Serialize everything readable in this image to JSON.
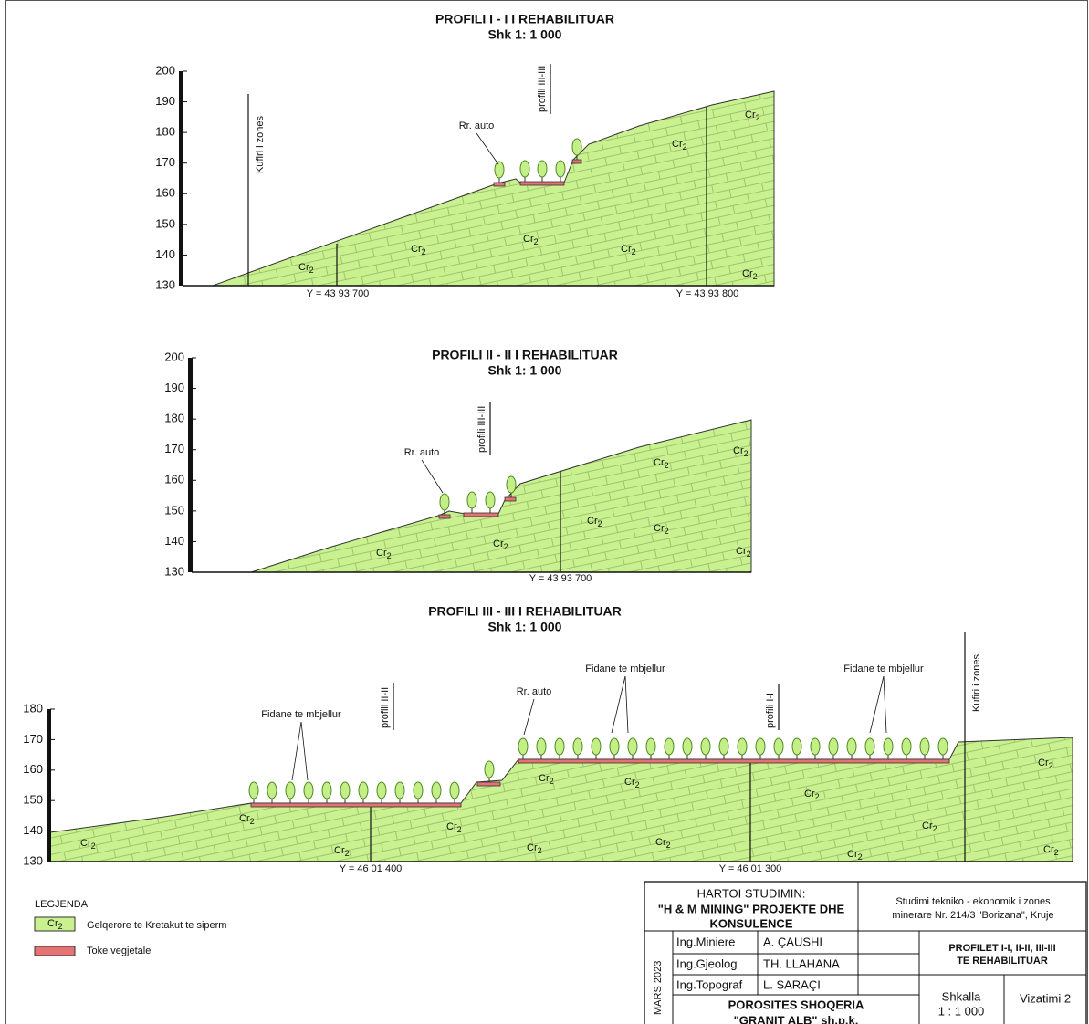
{
  "profiles": [
    {
      "title": "PROFILI I - I I REHABILITUAR",
      "scale": "Shk 1: 1 000",
      "yticks": [
        200,
        190,
        180,
        170,
        160,
        150,
        140,
        130
      ],
      "boundary": "Kufiri i zones",
      "sections": [
        "profili III-III"
      ],
      "road": "Rr. auto",
      "seedlings": [],
      "coords": [
        "Y = 43 93 700",
        "Y = 43 93 800"
      ]
    },
    {
      "title": "PROFILI II - II I REHABILITUAR",
      "scale": "Shk 1: 1 000",
      "yticks": [
        200,
        190,
        180,
        170,
        160,
        150,
        140,
        130
      ],
      "sections": [
        "profili III-III"
      ],
      "road": "Rr. auto",
      "seedlings": [],
      "coords": [
        "Y = 43 93 700"
      ]
    },
    {
      "title": "PROFILI III - III I REHABILITUAR",
      "scale": "Shk 1: 1 000",
      "yticks": [
        180,
        170,
        160,
        150,
        140,
        130
      ],
      "boundary": "Kufiri i zones",
      "sections": [
        "profili II-II",
        "profili I-I"
      ],
      "road": "Rr. auto",
      "seedlings": [
        "Fidane te mbjellur",
        "Fidane te mbjellur",
        "Fidane te mbjellur"
      ],
      "coords": [
        "Y = 46 01 400",
        "Y = 46 01 300"
      ]
    }
  ],
  "rock": {
    "symbol": "Cr",
    "subscript": "2"
  },
  "legend": {
    "title": "LEGJENDA",
    "items": [
      "Gelqerore te Kretakut te siperm",
      "Toke vegjetale"
    ]
  },
  "title_block": {
    "author_label": "HARTOI STUDIMIN:",
    "author": [
      "\"H & M MINING\" PROJEKTE DHE",
      "KONSULENCE"
    ],
    "study": [
      "Studimi tekniko - ekonomik i zones",
      "minerare Nr. 214/3 \"Borizana\", Kruje"
    ],
    "date": "MARS 2023",
    "staff": [
      [
        "Ing.Miniere",
        "A. ÇAUSHI"
      ],
      [
        "Ing.Gjeolog",
        "TH. LLAHANA"
      ],
      [
        "Ing.Topograf",
        "L. SARAÇI"
      ]
    ],
    "drawing_title": [
      "PROFILET I-I, II-II, III-III",
      "TE REHABILITUAR"
    ],
    "client": [
      "POROSITES SHOQERIA",
      "\"GRANIT ALB\" sh.p.k."
    ],
    "scale_label": "Shkalla",
    "scale": "1 : 1 000",
    "drawing": "Vizatimi 2"
  }
}
